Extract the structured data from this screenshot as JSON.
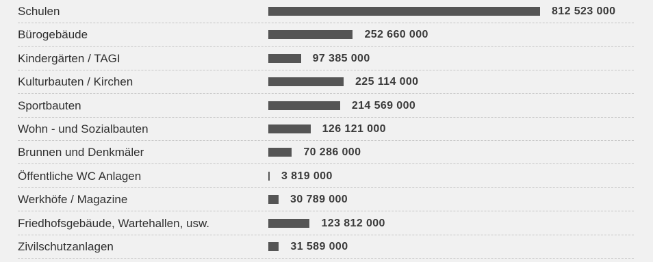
{
  "chart_data": {
    "type": "bar",
    "orientation": "horizontal",
    "categories": [
      "Schulen",
      "Bürogebäude",
      "Kindergärten / TAGI",
      "Kulturbauten / Kirchen",
      "Sportbauten",
      "Wohn - und Sozialbauten",
      "Brunnen und Denkmäler",
      "Öffentliche WC Anlagen",
      "Werkhöfe / Magazine",
      "Friedhofsgebäude, Wartehallen, usw.",
      "Zivilschutzanlagen"
    ],
    "values": [
      812523000,
      252660000,
      97385000,
      225114000,
      214569000,
      126121000,
      70286000,
      3819000,
      30789000,
      123812000,
      31589000
    ],
    "value_labels": [
      "812 523 000",
      "252 660 000",
      "97 385 000",
      "225 114 000",
      "214 569 000",
      "126 121 000",
      "70 286 000",
      "3 819 000",
      "30 789 000",
      "123 812 000",
      "31 589 000"
    ],
    "bar_color": "#555555",
    "grid": false
  }
}
